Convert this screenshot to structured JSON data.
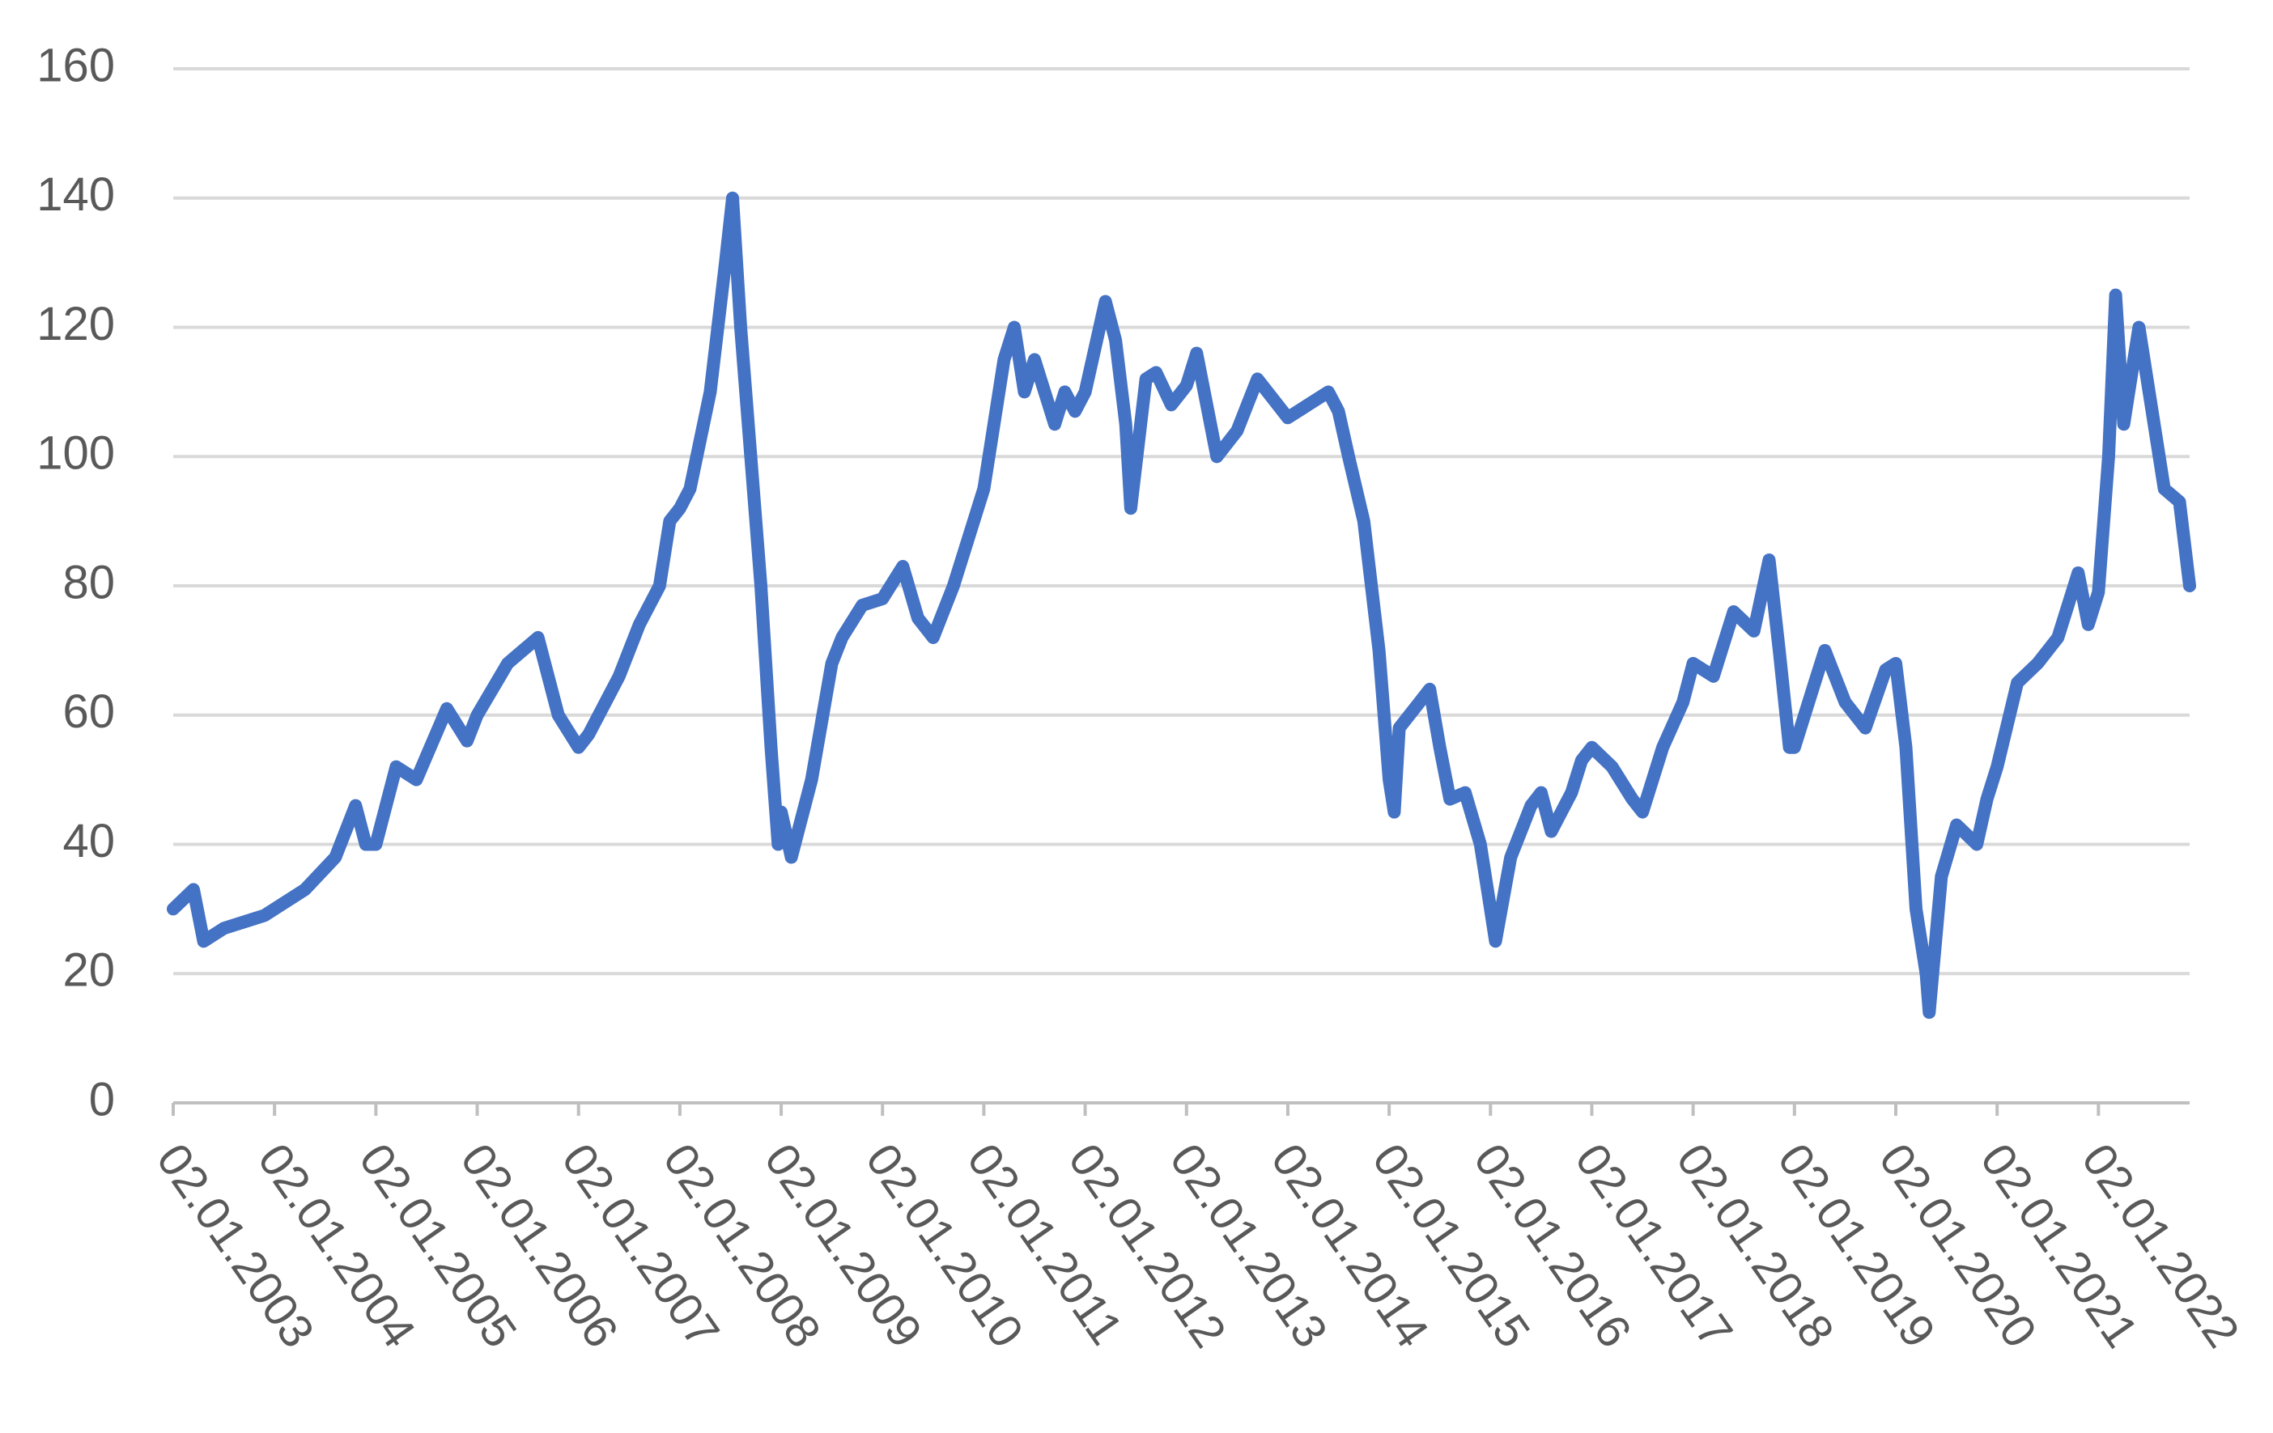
{
  "chart_data": {
    "type": "line",
    "x": [
      2003,
      2003.2,
      2003.3,
      2003.5,
      2003.9,
      2004,
      2004.3,
      2004.6,
      2004.8,
      2004.9,
      2005,
      2005.2,
      2005.4,
      2005.7,
      2005.9,
      2006,
      2006.3,
      2006.6,
      2006.8,
      2007,
      2007.1,
      2007.4,
      2007.6,
      2007.8,
      2007.9,
      2008,
      2008.1,
      2008.3,
      2008.45,
      2008.52,
      2008.6,
      2008.7,
      2008.8,
      2008.9,
      2008.97,
      2009,
      2009.1,
      2009.3,
      2009.5,
      2009.6,
      2009.8,
      2010,
      2010.2,
      2010.35,
      2010.5,
      2010.7,
      2010.9,
      2011,
      2011.2,
      2011.3,
      2011.4,
      2011.5,
      2011.7,
      2011.8,
      2011.9,
      2012,
      2012.2,
      2012.3,
      2012.4,
      2012.45,
      2012.6,
      2012.7,
      2012.85,
      2013,
      2013.1,
      2013.3,
      2013.5,
      2013.7,
      2013.9,
      2014,
      2014.2,
      2014.4,
      2014.5,
      2014.6,
      2014.75,
      2014.9,
      2015,
      2015.05,
      2015.1,
      2015.3,
      2015.4,
      2015.5,
      2015.6,
      2015.75,
      2015.9,
      2016,
      2016.05,
      2016.2,
      2016.4,
      2016.5,
      2016.6,
      2016.8,
      2016.9,
      2017,
      2017.2,
      2017.4,
      2017.5,
      2017.7,
      2017.9,
      2018,
      2018.2,
      2018.4,
      2018.6,
      2018.75,
      2018.85,
      2018.95,
      2019,
      2019.2,
      2019.3,
      2019.5,
      2019.6,
      2019.7,
      2019.9,
      2020,
      2020.1,
      2020.2,
      2020.3,
      2020.33,
      2020.45,
      2020.6,
      2020.8,
      2020.9,
      2021,
      2021.2,
      2021.4,
      2021.6,
      2021.8,
      2021.9,
      2022,
      2022.1,
      2022.17,
      2022.25,
      2022.4,
      2022.5,
      2022.65,
      2022.8,
      2022.9
    ],
    "values": [
      30,
      33,
      25,
      27,
      29,
      30,
      33,
      38,
      46,
      40,
      40,
      52,
      50,
      61,
      56,
      60,
      68,
      72,
      60,
      55,
      57,
      66,
      74,
      80,
      90,
      92,
      95,
      110,
      130,
      140,
      120,
      100,
      80,
      55,
      40,
      45,
      38,
      50,
      68,
      72,
      77,
      78,
      83,
      75,
      72,
      80,
      90,
      95,
      115,
      120,
      110,
      115,
      105,
      110,
      107,
      110,
      124,
      118,
      105,
      92,
      112,
      113,
      108,
      111,
      116,
      100,
      104,
      112,
      108,
      106,
      108,
      110,
      107,
      100,
      90,
      70,
      50,
      45,
      58,
      62,
      64,
      55,
      47,
      48,
      40,
      30,
      25,
      38,
      46,
      48,
      42,
      48,
      53,
      55,
      52,
      47,
      45,
      55,
      62,
      68,
      66,
      76,
      73,
      84,
      70,
      55,
      55,
      65,
      70,
      62,
      60,
      58,
      67,
      68,
      55,
      30,
      20,
      14,
      35,
      43,
      40,
      47,
      52,
      65,
      68,
      72,
      82,
      74,
      79,
      100,
      125,
      105,
      120,
      110,
      95,
      93,
      80
    ],
    "color": "#4472c4",
    "xlim": [
      2003,
      2022.9
    ],
    "xticks": [
      {
        "value": 2003,
        "label": "02.01.2003"
      },
      {
        "value": 2004,
        "label": "02.01.2004"
      },
      {
        "value": 2005,
        "label": "02.01.2005"
      },
      {
        "value": 2006,
        "label": "02.01.2006"
      },
      {
        "value": 2007,
        "label": "02.01.2007"
      },
      {
        "value": 2008,
        "label": "02.01.2008"
      },
      {
        "value": 2009,
        "label": "02.01.2009"
      },
      {
        "value": 2010,
        "label": "02.01.2010"
      },
      {
        "value": 2011,
        "label": "02.01.2011"
      },
      {
        "value": 2012,
        "label": "02.01.2012"
      },
      {
        "value": 2013,
        "label": "02.01.2013"
      },
      {
        "value": 2014,
        "label": "02.01.2014"
      },
      {
        "value": 2015,
        "label": "02.01.2015"
      },
      {
        "value": 2016,
        "label": "02.01.2016"
      },
      {
        "value": 2017,
        "label": "02.01.2017"
      },
      {
        "value": 2018,
        "label": "02.01.2018"
      },
      {
        "value": 2019,
        "label": "02.01.2019"
      },
      {
        "value": 2020,
        "label": "02.01.2020"
      },
      {
        "value": 2021,
        "label": "02.01.2021"
      },
      {
        "value": 2022,
        "label": "02.01.2022"
      }
    ],
    "ylim": [
      0,
      160
    ],
    "yticks": [
      0,
      20,
      40,
      60,
      80,
      100,
      120,
      140,
      160
    ],
    "grid": true
  }
}
